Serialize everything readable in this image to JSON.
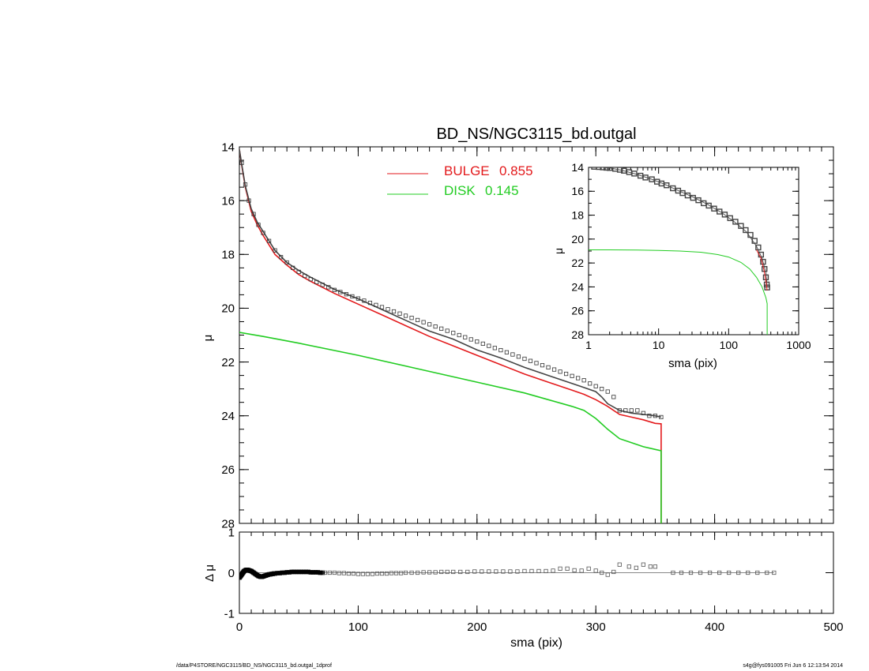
{
  "chart_data": [
    {
      "type": "line",
      "title": "BD_NS/NGC3115_bd.outgal",
      "xlabel": "",
      "ylabel": "μ",
      "xlim": [
        0,
        500
      ],
      "ylim": [
        28,
        14
      ],
      "y_inverted": true,
      "x_ticks": [
        0,
        100,
        200,
        300,
        400,
        500
      ],
      "y_ticks": [
        14,
        16,
        18,
        20,
        22,
        24,
        26,
        28
      ],
      "grid": false,
      "legend_position": "top-center",
      "legend": [
        {
          "label": "BULGE",
          "value": "0.855",
          "color": "#e31a1c"
        },
        {
          "label": "DISK",
          "value": "0.145",
          "color": "#22cc22"
        }
      ],
      "series": [
        {
          "name": "BULGE",
          "style": "line",
          "color": "#e31a1c",
          "x": [
            0,
            2,
            5,
            10,
            15,
            20,
            30,
            40,
            50,
            60,
            80,
            100,
            120,
            140,
            160,
            180,
            200,
            220,
            240,
            260,
            280,
            290,
            300,
            310,
            320,
            330,
            340,
            350,
            355,
            355
          ],
          "y": [
            14.1,
            14.7,
            15.5,
            16.4,
            16.9,
            17.3,
            18.0,
            18.4,
            18.75,
            19.0,
            19.45,
            19.85,
            20.25,
            20.65,
            21.05,
            21.4,
            21.75,
            22.1,
            22.45,
            22.75,
            23.05,
            23.2,
            23.4,
            23.65,
            23.95,
            24.05,
            24.15,
            24.28,
            24.3,
            28
          ]
        },
        {
          "name": "DISK",
          "style": "line",
          "color": "#22cc22",
          "x": [
            0,
            20,
            50,
            100,
            150,
            200,
            240,
            260,
            280,
            290,
            300,
            310,
            320,
            330,
            340,
            350,
            355,
            355
          ],
          "y": [
            20.9,
            21.05,
            21.3,
            21.75,
            22.25,
            22.75,
            23.15,
            23.4,
            23.65,
            23.8,
            24.1,
            24.5,
            24.85,
            25.0,
            25.15,
            25.25,
            25.3,
            28
          ]
        },
        {
          "name": "",
          "style": "line",
          "color": "#444444",
          "x": [
            0,
            2,
            5,
            10,
            15,
            20,
            30,
            40,
            50,
            60,
            80,
            100,
            120,
            140,
            160,
            180,
            200,
            220,
            240,
            260,
            280,
            290,
            300,
            305,
            310,
            320,
            330,
            340,
            350,
            355
          ],
          "y": [
            14.1,
            14.65,
            15.45,
            16.3,
            16.8,
            17.15,
            17.85,
            18.3,
            18.6,
            18.85,
            19.3,
            19.65,
            20.05,
            20.45,
            20.85,
            21.15,
            21.55,
            21.85,
            22.2,
            22.5,
            22.8,
            22.95,
            23.1,
            23.3,
            23.55,
            23.8,
            23.9,
            23.95,
            24.0,
            24.05
          ]
        },
        {
          "name": "",
          "style": "squares",
          "color": "#333333",
          "x": [
            2,
            5,
            8,
            12,
            16,
            20,
            25,
            30,
            35,
            40,
            45,
            50,
            55,
            60,
            65,
            70,
            75,
            80,
            85,
            90,
            95,
            100,
            105,
            110,
            115,
            120,
            125,
            130,
            135,
            140,
            145,
            150,
            155,
            160,
            165,
            170,
            175,
            180,
            185,
            190,
            195,
            200,
            205,
            210,
            215,
            220,
            225,
            230,
            235,
            240,
            245,
            250,
            255,
            260,
            265,
            270,
            275,
            280,
            285,
            290,
            295,
            300,
            305,
            310,
            315,
            320,
            325,
            330,
            335,
            340,
            345,
            350,
            355
          ],
          "y": [
            14.6,
            15.4,
            16.0,
            16.5,
            16.9,
            17.2,
            17.5,
            17.85,
            18.1,
            18.3,
            18.5,
            18.65,
            18.8,
            18.92,
            19.03,
            19.13,
            19.22,
            19.32,
            19.4,
            19.48,
            19.56,
            19.64,
            19.72,
            19.8,
            19.88,
            19.96,
            20.04,
            20.12,
            20.2,
            20.28,
            20.36,
            20.44,
            20.52,
            20.6,
            20.68,
            20.76,
            20.84,
            20.92,
            21.0,
            21.08,
            21.16,
            21.24,
            21.32,
            21.4,
            21.48,
            21.56,
            21.64,
            21.72,
            21.8,
            21.88,
            21.96,
            22.04,
            22.12,
            22.2,
            22.28,
            22.36,
            22.44,
            22.52,
            22.6,
            22.68,
            22.8,
            22.9,
            23.0,
            23.1,
            23.3,
            23.8,
            23.8,
            23.8,
            23.8,
            23.9,
            24.0,
            24.0,
            24.05
          ]
        }
      ]
    },
    {
      "type": "line",
      "xlabel": "sma (pix)",
      "ylabel": "μ",
      "x_scale": "log",
      "xlim": [
        1,
        1000
      ],
      "ylim": [
        28,
        14
      ],
      "y_inverted": true,
      "x_ticks": [
        1,
        10,
        100,
        1000
      ],
      "x_tick_labels": [
        "1",
        "10",
        "100",
        "1000"
      ],
      "y_ticks": [
        14,
        16,
        18,
        20,
        22,
        24,
        26,
        28
      ],
      "grid": false,
      "series": [
        {
          "name": "",
          "style": "line",
          "color": "#555555",
          "x": [
            1.2,
            2,
            3,
            5,
            8,
            12,
            20,
            30,
            50,
            80,
            120,
            180,
            250,
            300,
            340,
            355
          ],
          "y": [
            13.95,
            14.05,
            14.25,
            14.6,
            15.0,
            15.4,
            16.0,
            16.45,
            17.1,
            17.8,
            18.55,
            19.4,
            20.6,
            21.6,
            22.8,
            24.0
          ]
        },
        {
          "name": "",
          "style": "points",
          "color": "#444444",
          "x": [
            1.2,
            1.4,
            1.6,
            1.8,
            2,
            2.4,
            2.8,
            3.2,
            3.8,
            4.5,
            5.5,
            6.5,
            8,
            9.5,
            11,
            13,
            16,
            19,
            22,
            26,
            31,
            37,
            44,
            52,
            62,
            74,
            88,
            105,
            125,
            150,
            175,
            205,
            235,
            265,
            290,
            310,
            325,
            340,
            350,
            355
          ],
          "y": [
            13.95,
            13.97,
            14.0,
            14.03,
            14.05,
            14.12,
            14.2,
            14.28,
            14.4,
            14.52,
            14.7,
            14.85,
            15.0,
            15.2,
            15.35,
            15.5,
            15.75,
            15.95,
            16.15,
            16.35,
            16.55,
            16.75,
            17.0,
            17.2,
            17.45,
            17.7,
            17.95,
            18.25,
            18.55,
            18.9,
            19.25,
            19.65,
            20.15,
            20.7,
            21.3,
            21.9,
            22.5,
            23.2,
            23.8,
            24.05
          ]
        },
        {
          "name": "",
          "style": "line",
          "color": "#e31a1c",
          "x": [
            250,
            290,
            320,
            340,
            355
          ],
          "y": [
            20.9,
            21.6,
            22.6,
            23.5,
            24.3
          ]
        },
        {
          "name": "",
          "style": "line",
          "color": "#22cc22",
          "x": [
            1,
            2,
            5,
            10,
            20,
            40,
            70,
            100,
            150,
            200,
            250,
            300,
            340,
            355,
            355
          ],
          "y": [
            20.9,
            20.9,
            20.92,
            20.95,
            21.0,
            21.1,
            21.3,
            21.5,
            21.95,
            22.5,
            23.2,
            24.0,
            24.9,
            25.4,
            28
          ]
        }
      ]
    },
    {
      "type": "scatter",
      "xlabel": "sma (pix)",
      "ylabel": "Δ μ",
      "xlim": [
        0,
        500
      ],
      "ylim": [
        -1,
        1
      ],
      "x_ticks": [
        0,
        100,
        200,
        300,
        400,
        500
      ],
      "y_ticks": [
        -1,
        0,
        1
      ],
      "grid": false,
      "series": [
        {
          "name": "",
          "style": "line",
          "color": "#888888",
          "x": [
            0,
            450
          ],
          "y": [
            0,
            0
          ]
        },
        {
          "name": "",
          "style": "dense_points",
          "color": "#000000",
          "x": [
            0,
            0.5,
            1,
            1.5,
            2,
            2.5,
            3,
            3.5,
            4,
            5,
            6,
            7,
            8,
            9,
            10,
            11,
            12,
            13,
            14,
            15,
            16,
            17,
            18,
            19,
            20,
            21,
            22,
            23,
            24,
            25,
            26,
            27,
            28,
            29,
            30,
            32,
            34,
            36,
            38,
            40,
            42,
            44,
            46,
            48,
            50,
            52,
            54,
            56,
            58,
            60,
            62,
            64,
            66,
            68,
            70
          ],
          "y": [
            -0.12,
            -0.1,
            -0.08,
            -0.06,
            -0.04,
            -0.02,
            0.0,
            0.02,
            0.04,
            0.06,
            0.07,
            0.07,
            0.06,
            0.05,
            0.04,
            0.02,
            0.0,
            -0.02,
            -0.04,
            -0.06,
            -0.08,
            -0.09,
            -0.1,
            -0.1,
            -0.09,
            -0.08,
            -0.07,
            -0.06,
            -0.05,
            -0.04,
            -0.04,
            -0.03,
            -0.03,
            -0.02,
            -0.02,
            -0.01,
            -0.01,
            0.0,
            0.0,
            0.01,
            0.01,
            0.02,
            0.02,
            0.02,
            0.02,
            0.02,
            0.02,
            0.02,
            0.02,
            0.01,
            0.01,
            0.01,
            0.01,
            0.0,
            0.0
          ]
        },
        {
          "name": "",
          "style": "squares",
          "color": "#555555",
          "x": [
            72,
            76,
            80,
            84,
            88,
            92,
            96,
            100,
            104,
            108,
            112,
            116,
            120,
            124,
            128,
            132,
            136,
            140,
            145,
            150,
            155,
            160,
            165,
            170,
            175,
            180,
            186,
            192,
            198,
            204,
            210,
            216,
            222,
            228,
            234,
            240,
            246,
            252,
            258,
            264,
            270,
            276,
            282,
            288,
            294,
            300,
            305,
            310,
            315,
            320,
            328,
            334,
            340,
            346,
            350,
            365,
            372,
            380,
            388,
            396,
            404,
            412,
            420,
            428,
            436,
            444,
            450
          ],
          "y": [
            0.0,
            0.0,
            0.0,
            -0.01,
            -0.01,
            -0.02,
            -0.02,
            -0.03,
            -0.03,
            -0.03,
            -0.03,
            -0.02,
            -0.02,
            -0.02,
            -0.01,
            -0.01,
            -0.01,
            0.0,
            0.0,
            0.0,
            0.01,
            0.01,
            0.01,
            0.02,
            0.02,
            0.02,
            0.02,
            0.02,
            0.03,
            0.03,
            0.03,
            0.03,
            0.03,
            0.03,
            0.03,
            0.04,
            0.04,
            0.04,
            0.04,
            0.05,
            0.1,
            0.1,
            0.06,
            0.05,
            0.1,
            0.05,
            0.0,
            -0.05,
            0.02,
            0.2,
            0.15,
            0.12,
            0.2,
            0.15,
            0.15,
            0.0,
            0.0,
            0.0,
            0.0,
            0.0,
            0.0,
            0.0,
            0.0,
            0.0,
            0.0,
            0.0,
            0.0
          ]
        }
      ]
    }
  ],
  "footer": {
    "left": "/data/P4STORE/NGC3115/BD_NS/NGC3115_bd.outgal_1dprof",
    "right": "s4g@fys091005  Fri Jun  6 12:13:54 2014"
  }
}
